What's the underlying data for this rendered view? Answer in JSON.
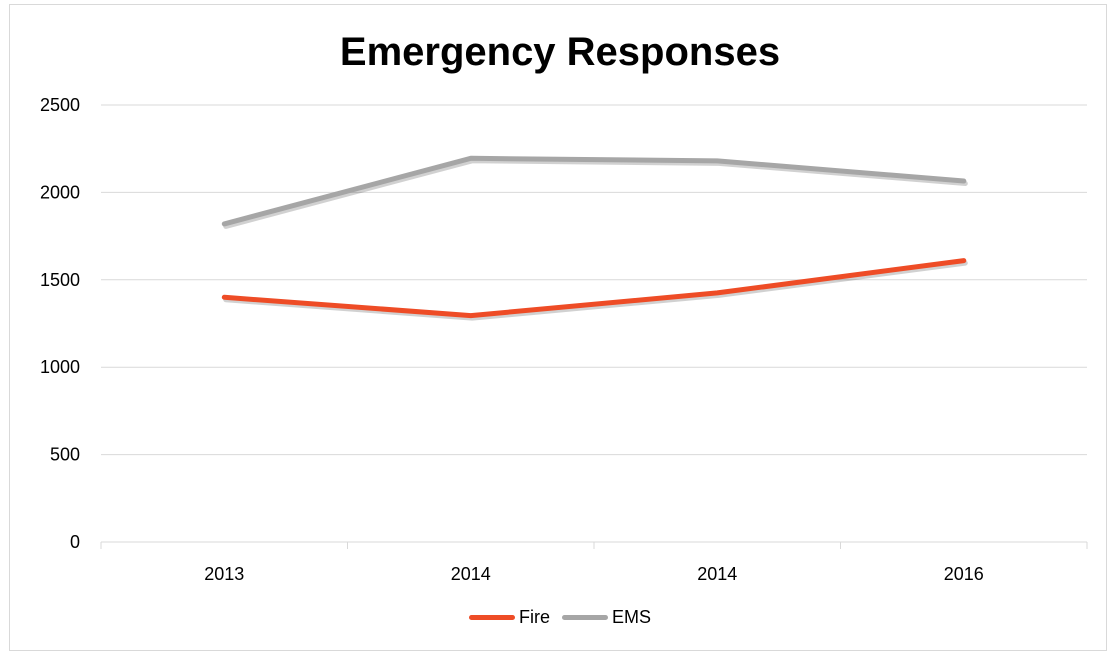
{
  "chart_data": {
    "type": "line",
    "title": "Emergency Responses",
    "categories": [
      "2013",
      "2014",
      "2014",
      "2016"
    ],
    "series": [
      {
        "name": "Fire",
        "color": "#ee4c26",
        "values": [
          1400,
          1295,
          1425,
          1610
        ]
      },
      {
        "name": "EMS",
        "color": "#a6a6a6",
        "values": [
          1820,
          2195,
          2180,
          2065
        ]
      }
    ],
    "ylim": [
      0,
      2500
    ],
    "yticks": [
      "0",
      "500",
      "1000",
      "1500",
      "2000",
      "2500"
    ],
    "xlabel": "",
    "ylabel": "",
    "grid": true,
    "legend_position": "bottom"
  }
}
